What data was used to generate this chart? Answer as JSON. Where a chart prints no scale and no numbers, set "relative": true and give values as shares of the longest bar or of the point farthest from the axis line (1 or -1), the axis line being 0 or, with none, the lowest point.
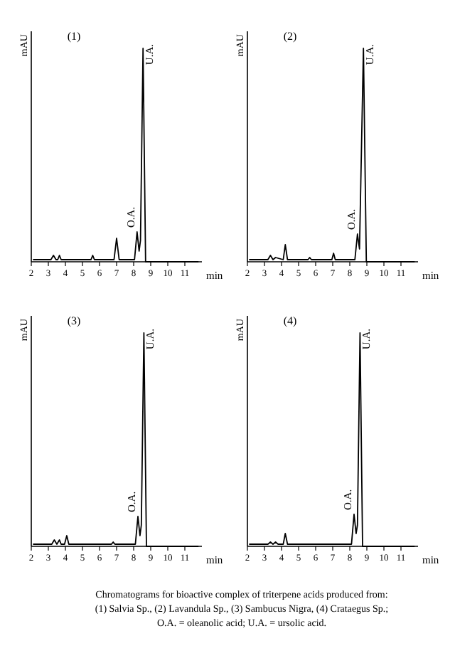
{
  "chart_data": [
    {
      "type": "line",
      "title": "(1)",
      "ylabel": "mAU",
      "xlabel": "min",
      "relative": true,
      "xlim": [
        2,
        12
      ],
      "xticks": [
        2,
        3,
        4,
        5,
        6,
        7,
        8,
        9,
        10,
        11
      ],
      "marker": "none",
      "line_style": "solid",
      "series": [
        {
          "color": "#000000",
          "x": [
            2.1,
            3.15,
            3.3,
            3.45,
            3.55,
            3.65,
            3.75,
            5.5,
            5.6,
            5.7,
            6.85,
            7.0,
            7.15,
            8.05,
            8.2,
            8.32,
            8.4,
            8.55,
            8.7,
            11.8
          ],
          "values": [
            0.01,
            0.01,
            0.03,
            0.01,
            0.01,
            0.03,
            0.01,
            0.01,
            0.03,
            0.01,
            0.01,
            0.11,
            0.01,
            0.01,
            0.14,
            0.05,
            0.1,
            1,
            0,
            0
          ]
        }
      ],
      "annotations": [
        {
          "text": "O.A.",
          "x": 8.2,
          "y": 0.14
        },
        {
          "text": "U.A.",
          "x": 8.55,
          "y": 1
        }
      ]
    },
    {
      "type": "line",
      "title": "(2)",
      "ylabel": "mAU",
      "xlabel": "min",
      "relative": true,
      "xlim": [
        2,
        12
      ],
      "xticks": [
        2,
        3,
        4,
        5,
        6,
        7,
        8,
        9,
        10,
        11
      ],
      "marker": "none",
      "line_style": "solid",
      "series": [
        {
          "color": "#000000",
          "x": [
            2.1,
            3.2,
            3.35,
            3.5,
            3.65,
            4.1,
            4.22,
            4.35,
            5.55,
            5.65,
            5.75,
            6.95,
            7.05,
            7.15,
            8.3,
            8.45,
            8.57,
            8.8,
            8.97,
            11.8
          ],
          "values": [
            0.01,
            0.01,
            0.03,
            0.01,
            0.02,
            0.01,
            0.08,
            0.01,
            0.01,
            0.02,
            0.01,
            0.01,
            0.04,
            0.01,
            0.01,
            0.13,
            0.06,
            1,
            0,
            0
          ]
        }
      ],
      "annotations": [
        {
          "text": "O.A.",
          "x": 8.45,
          "y": 0.13
        },
        {
          "text": "U.A.",
          "x": 8.8,
          "y": 1
        }
      ]
    },
    {
      "type": "line",
      "title": "(3)",
      "ylabel": "mAU",
      "xlabel": "min",
      "relative": true,
      "xlim": [
        2,
        12
      ],
      "xticks": [
        2,
        3,
        4,
        5,
        6,
        7,
        8,
        9,
        10,
        11
      ],
      "marker": "none",
      "line_style": "solid",
      "series": [
        {
          "color": "#000000",
          "x": [
            2.1,
            3.2,
            3.35,
            3.5,
            3.65,
            3.75,
            3.95,
            4.08,
            4.2,
            6.7,
            6.8,
            6.9,
            8.1,
            8.25,
            8.37,
            8.45,
            8.6,
            8.75,
            11.8
          ],
          "values": [
            0.01,
            0.01,
            0.03,
            0.01,
            0.03,
            0.01,
            0.01,
            0.05,
            0.01,
            0.01,
            0.02,
            0.01,
            0.01,
            0.14,
            0.05,
            0.1,
            1,
            0,
            0
          ]
        }
      ],
      "annotations": [
        {
          "text": "O.A.",
          "x": 8.25,
          "y": 0.14
        },
        {
          "text": "U.A.",
          "x": 8.6,
          "y": 1
        }
      ]
    },
    {
      "type": "line",
      "title": "(4)",
      "ylabel": "mAU",
      "xlabel": "min",
      "relative": true,
      "xlim": [
        2,
        12
      ],
      "xticks": [
        2,
        3,
        4,
        5,
        6,
        7,
        8,
        9,
        10,
        11
      ],
      "marker": "none",
      "line_style": "solid",
      "series": [
        {
          "color": "#000000",
          "x": [
            2.1,
            3.2,
            3.35,
            3.5,
            3.65,
            3.8,
            4.1,
            4.22,
            4.35,
            8.1,
            8.25,
            8.37,
            8.45,
            8.6,
            8.75,
            11.8
          ],
          "values": [
            0.01,
            0.01,
            0.02,
            0.01,
            0.02,
            0.01,
            0.01,
            0.06,
            0.01,
            0.01,
            0.15,
            0.06,
            0.1,
            1,
            0,
            0
          ]
        }
      ],
      "annotations": [
        {
          "text": "O.A.",
          "x": 8.25,
          "y": 0.15
        },
        {
          "text": "U.A.",
          "x": 8.6,
          "y": 1
        },
        "Chromatograms for bioactive complex of triterpene acids produced from:\n(1) Salvia Sp., (2) Lavandula Sp., (3) Sambucus Nigra, (4) Crataegus Sp.;\nO.A. = oleanolic acid; U.A. = ursolic acid."
      ]
    }
  ]
}
